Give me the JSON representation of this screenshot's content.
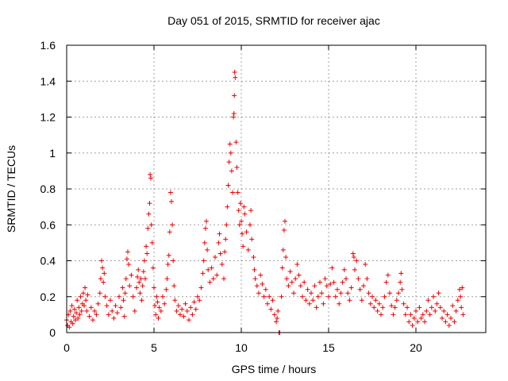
{
  "chart_data": {
    "type": "scatter",
    "title": "Day 051 of 2015, SRMTID for receiver ajac",
    "xlabel": "GPS time / hours",
    "ylabel": "SRMTID / TECUs",
    "xlim": [
      0,
      24
    ],
    "ylim": [
      0,
      1.6
    ],
    "xticks": [
      "0",
      "5",
      "10",
      "15",
      "20"
    ],
    "yticks": [
      "0",
      "0.2",
      "0.4",
      "0.6",
      "0.8",
      "1",
      "1.2",
      "1.4",
      "1.6"
    ],
    "marker": "+",
    "color": "#ee0000",
    "grid": true,
    "series": [
      {
        "name": "SRMTID",
        "points": [
          [
            0.0,
            0.07
          ],
          [
            0.05,
            0.04
          ],
          [
            0.1,
            0.1
          ],
          [
            0.15,
            0.03
          ],
          [
            0.2,
            0.12
          ],
          [
            0.25,
            0.06
          ],
          [
            0.3,
            0.15
          ],
          [
            0.35,
            0.05
          ],
          [
            0.4,
            0.09
          ],
          [
            0.45,
            0.13
          ],
          [
            0.5,
            0.07
          ],
          [
            0.55,
            0.11
          ],
          [
            0.6,
            0.18
          ],
          [
            0.65,
            0.08
          ],
          [
            0.7,
            0.14
          ],
          [
            0.75,
            0.1
          ],
          [
            0.8,
            0.2
          ],
          [
            0.85,
            0.12
          ],
          [
            0.9,
            0.16
          ],
          [
            0.95,
            0.22
          ],
          [
            1.0,
            0.15
          ],
          [
            1.05,
            0.25
          ],
          [
            1.1,
            0.18
          ],
          [
            1.15,
            0.12
          ],
          [
            1.2,
            0.21
          ],
          [
            1.3,
            0.09
          ],
          [
            1.4,
            0.14
          ],
          [
            1.5,
            0.07
          ],
          [
            1.6,
            0.12
          ],
          [
            1.7,
            0.1
          ],
          [
            1.8,
            0.16
          ],
          [
            1.9,
            0.22
          ],
          [
            1.95,
            0.3
          ],
          [
            2.0,
            0.4
          ],
          [
            2.05,
            0.36
          ],
          [
            2.1,
            0.28
          ],
          [
            2.15,
            0.33
          ],
          [
            2.2,
            0.2
          ],
          [
            2.3,
            0.15
          ],
          [
            2.4,
            0.1
          ],
          [
            2.5,
            0.18
          ],
          [
            2.6,
            0.12
          ],
          [
            2.7,
            0.08
          ],
          [
            2.8,
            0.15
          ],
          [
            2.9,
            0.11
          ],
          [
            3.0,
            0.2
          ],
          [
            3.1,
            0.14
          ],
          [
            3.2,
            0.25
          ],
          [
            3.25,
            0.18
          ],
          [
            3.3,
            0.09
          ],
          [
            3.35,
            0.22
          ],
          [
            3.4,
            0.3
          ],
          [
            3.45,
            0.41
          ],
          [
            3.5,
            0.45
          ],
          [
            3.55,
            0.38
          ],
          [
            3.6,
            0.26
          ],
          [
            3.7,
            0.32
          ],
          [
            3.8,
            0.2
          ],
          [
            3.9,
            0.12
          ],
          [
            4.0,
            0.25
          ],
          [
            4.05,
            0.31
          ],
          [
            4.1,
            0.35
          ],
          [
            4.15,
            0.28
          ],
          [
            4.2,
            0.22
          ],
          [
            4.25,
            0.3
          ],
          [
            4.3,
            0.18
          ],
          [
            4.35,
            0.26
          ],
          [
            4.4,
            0.34
          ],
          [
            4.45,
            0.4
          ],
          [
            4.5,
            0.3
          ],
          [
            4.55,
            0.48
          ],
          [
            4.6,
            0.44
          ],
          [
            4.65,
            0.58
          ],
          [
            4.7,
            0.66
          ],
          [
            4.75,
            0.72
          ],
          [
            4.78,
            0.88
          ],
          [
            4.82,
            0.86
          ],
          [
            4.85,
            0.6
          ],
          [
            4.9,
            0.5
          ],
          [
            4.95,
            0.36
          ],
          [
            5.0,
            0.25
          ],
          [
            5.05,
            0.15
          ],
          [
            5.1,
            0.1
          ],
          [
            5.15,
            0.2
          ],
          [
            5.2,
            0.17
          ],
          [
            5.25,
            0.08
          ],
          [
            5.3,
            0.14
          ],
          [
            5.4,
            0.12
          ],
          [
            5.5,
            0.2
          ],
          [
            5.6,
            0.16
          ],
          [
            5.7,
            0.24
          ],
          [
            5.75,
            0.3
          ],
          [
            5.8,
            0.38
          ],
          [
            5.85,
            0.43
          ],
          [
            5.9,
            0.56
          ],
          [
            5.95,
            0.78
          ],
          [
            6.0,
            0.73
          ],
          [
            6.05,
            0.6
          ],
          [
            6.1,
            0.4
          ],
          [
            6.15,
            0.26
          ],
          [
            6.2,
            0.18
          ],
          [
            6.3,
            0.12
          ],
          [
            6.4,
            0.15
          ],
          [
            6.5,
            0.1
          ],
          [
            6.6,
            0.13
          ],
          [
            6.7,
            0.09
          ],
          [
            6.8,
            0.16
          ],
          [
            6.9,
            0.12
          ],
          [
            7.0,
            0.07
          ],
          [
            7.1,
            0.14
          ],
          [
            7.2,
            0.1
          ],
          [
            7.3,
            0.17
          ],
          [
            7.4,
            0.13
          ],
          [
            7.5,
            0.2
          ],
          [
            7.6,
            0.18
          ],
          [
            7.7,
            0.25
          ],
          [
            7.8,
            0.33
          ],
          [
            7.85,
            0.4
          ],
          [
            7.9,
            0.5
          ],
          [
            7.95,
            0.58
          ],
          [
            8.0,
            0.62
          ],
          [
            8.05,
            0.46
          ],
          [
            8.1,
            0.35
          ],
          [
            8.2,
            0.28
          ],
          [
            8.3,
            0.36
          ],
          [
            8.4,
            0.3
          ],
          [
            8.5,
            0.42
          ],
          [
            8.6,
            0.32
          ],
          [
            8.7,
            0.5
          ],
          [
            8.75,
            0.55
          ],
          [
            8.8,
            0.44
          ],
          [
            8.9,
            0.38
          ],
          [
            9.0,
            0.3
          ],
          [
            9.05,
            0.45
          ],
          [
            9.1,
            0.52
          ],
          [
            9.15,
            0.6
          ],
          [
            9.2,
            0.7
          ],
          [
            9.25,
            0.82
          ],
          [
            9.3,
            0.95
          ],
          [
            9.35,
            1.05
          ],
          [
            9.4,
            1.0
          ],
          [
            9.45,
            0.9
          ],
          [
            9.5,
            0.78
          ],
          [
            9.55,
            1.2
          ],
          [
            9.58,
            1.22
          ],
          [
            9.6,
            1.32
          ],
          [
            9.62,
            1.45
          ],
          [
            9.65,
            1.42
          ],
          [
            9.7,
            1.06
          ],
          [
            9.75,
            0.92
          ],
          [
            9.8,
            0.78
          ],
          [
            9.85,
            0.68
          ],
          [
            9.9,
            0.6
          ],
          [
            9.95,
            0.72
          ],
          [
            10.0,
            0.62
          ],
          [
            10.05,
            0.55
          ],
          [
            10.1,
            0.48
          ],
          [
            10.15,
            0.7
          ],
          [
            10.2,
            0.66
          ],
          [
            10.3,
            0.56
          ],
          [
            10.4,
            0.46
          ],
          [
            10.5,
            0.6
          ],
          [
            10.55,
            0.68
          ],
          [
            10.6,
            0.52
          ],
          [
            10.7,
            0.42
          ],
          [
            10.75,
            0.35
          ],
          [
            10.8,
            0.3
          ],
          [
            10.9,
            0.26
          ],
          [
            11.0,
            0.22
          ],
          [
            11.1,
            0.32
          ],
          [
            11.2,
            0.27
          ],
          [
            11.3,
            0.2
          ],
          [
            11.4,
            0.24
          ],
          [
            11.5,
            0.16
          ],
          [
            11.6,
            0.2
          ],
          [
            11.7,
            0.13
          ],
          [
            11.8,
            0.18
          ],
          [
            11.9,
            0.1
          ],
          [
            12.0,
            0.06
          ],
          [
            12.05,
            0.08
          ],
          [
            12.1,
            0.12
          ],
          [
            12.15,
            0.0
          ],
          [
            12.2,
            0.0
          ],
          [
            12.3,
            0.2
          ],
          [
            12.35,
            0.36
          ],
          [
            12.4,
            0.46
          ],
          [
            12.45,
            0.57
          ],
          [
            12.5,
            0.62
          ],
          [
            12.55,
            0.42
          ],
          [
            12.6,
            0.3
          ],
          [
            12.7,
            0.26
          ],
          [
            12.8,
            0.34
          ],
          [
            12.9,
            0.28
          ],
          [
            13.0,
            0.22
          ],
          [
            13.1,
            0.3
          ],
          [
            13.2,
            0.38
          ],
          [
            13.3,
            0.32
          ],
          [
            13.4,
            0.26
          ],
          [
            13.5,
            0.2
          ],
          [
            13.6,
            0.28
          ],
          [
            13.7,
            0.18
          ],
          [
            13.8,
            0.24
          ],
          [
            13.9,
            0.16
          ],
          [
            14.0,
            0.22
          ],
          [
            14.1,
            0.18
          ],
          [
            14.2,
            0.26
          ],
          [
            14.3,
            0.14
          ],
          [
            14.4,
            0.2
          ],
          [
            14.5,
            0.28
          ],
          [
            14.6,
            0.22
          ],
          [
            14.7,
            0.16
          ],
          [
            14.8,
            0.3
          ],
          [
            14.9,
            0.26
          ],
          [
            15.0,
            0.2
          ],
          [
            15.1,
            0.27
          ],
          [
            15.2,
            0.36
          ],
          [
            15.3,
            0.28
          ],
          [
            15.4,
            0.2
          ],
          [
            15.5,
            0.24
          ],
          [
            15.6,
            0.16
          ],
          [
            15.7,
            0.22
          ],
          [
            15.8,
            0.28
          ],
          [
            15.9,
            0.35
          ],
          [
            16.0,
            0.3
          ],
          [
            16.1,
            0.22
          ],
          [
            16.2,
            0.18
          ],
          [
            16.3,
            0.25
          ],
          [
            16.4,
            0.44
          ],
          [
            16.45,
            0.42
          ],
          [
            16.5,
            0.35
          ],
          [
            16.6,
            0.4
          ],
          [
            16.7,
            0.3
          ],
          [
            16.8,
            0.24
          ],
          [
            16.9,
            0.18
          ],
          [
            17.0,
            0.26
          ],
          [
            17.1,
            0.38
          ],
          [
            17.2,
            0.3
          ],
          [
            17.3,
            0.22
          ],
          [
            17.4,
            0.16
          ],
          [
            17.5,
            0.2
          ],
          [
            17.6,
            0.14
          ],
          [
            17.7,
            0.18
          ],
          [
            17.8,
            0.12
          ],
          [
            17.9,
            0.16
          ],
          [
            18.0,
            0.1
          ],
          [
            18.1,
            0.14
          ],
          [
            18.2,
            0.2
          ],
          [
            18.3,
            0.28
          ],
          [
            18.4,
            0.32
          ],
          [
            18.5,
            0.22
          ],
          [
            18.6,
            0.15
          ],
          [
            18.7,
            0.1
          ],
          [
            18.8,
            0.14
          ],
          [
            18.9,
            0.18
          ],
          [
            19.0,
            0.22
          ],
          [
            19.1,
            0.28
          ],
          [
            19.15,
            0.33
          ],
          [
            19.2,
            0.24
          ],
          [
            19.3,
            0.16
          ],
          [
            19.4,
            0.1
          ],
          [
            19.5,
            0.14
          ],
          [
            19.6,
            0.06
          ],
          [
            19.7,
            0.1
          ],
          [
            19.8,
            0.04
          ],
          [
            19.9,
            0.08
          ],
          [
            20.0,
            0.12
          ],
          [
            20.1,
            0.06
          ],
          [
            20.2,
            0.14
          ],
          [
            20.3,
            0.08
          ],
          [
            20.4,
            0.1
          ],
          [
            20.5,
            0.06
          ],
          [
            20.6,
            0.12
          ],
          [
            20.7,
            0.18
          ],
          [
            20.8,
            0.1
          ],
          [
            20.9,
            0.14
          ],
          [
            21.0,
            0.2
          ],
          [
            21.1,
            0.12
          ],
          [
            21.2,
            0.16
          ],
          [
            21.3,
            0.22
          ],
          [
            21.4,
            0.14
          ],
          [
            21.5,
            0.08
          ],
          [
            21.6,
            0.12
          ],
          [
            21.7,
            0.06
          ],
          [
            21.8,
            0.1
          ],
          [
            21.9,
            0.04
          ],
          [
            22.0,
            0.08
          ],
          [
            22.1,
            0.15
          ],
          [
            22.2,
            0.06
          ],
          [
            22.3,
            0.12
          ],
          [
            22.4,
            0.18
          ],
          [
            22.5,
            0.24
          ],
          [
            22.55,
            0.2
          ],
          [
            22.6,
            0.14
          ],
          [
            22.65,
            0.25
          ],
          [
            22.7,
            0.1
          ]
        ]
      }
    ]
  }
}
